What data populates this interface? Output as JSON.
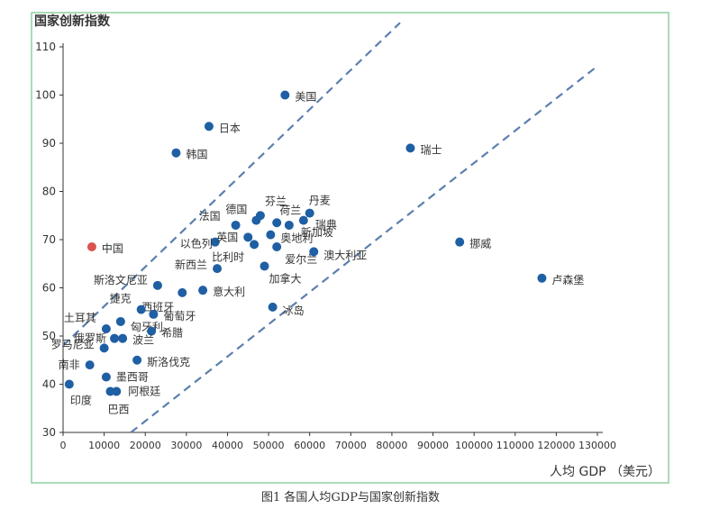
{
  "chart_data": {
    "type": "scatter",
    "title": "",
    "ylabel": "国家创新指数",
    "xlabel": "人均 GDP （美元）",
    "xlim": [
      0,
      130000
    ],
    "ylim": [
      30,
      110
    ],
    "x_ticks": [
      0,
      10000,
      20000,
      30000,
      40000,
      50000,
      60000,
      70000,
      80000,
      90000,
      100000,
      110000,
      120000,
      130000
    ],
    "y_ticks": [
      30,
      40,
      50,
      60,
      70,
      80,
      90,
      100,
      110
    ],
    "grid": false,
    "colors": {
      "default": "#1f5fa3",
      "highlight": "#d9534f",
      "reference_lines": "#5b7fae",
      "border": "#8fd19e"
    },
    "reference_lines": [
      {
        "style": "dashed",
        "points": [
          [
            0,
            48
          ],
          [
            82000,
            115
          ]
        ]
      },
      {
        "style": "dashed",
        "points": [
          [
            16500,
            30
          ],
          [
            130000,
            106
          ]
        ]
      }
    ],
    "points": [
      {
        "label": "美国",
        "x": 54000,
        "y": 100,
        "highlight": false
      },
      {
        "label": "日本",
        "x": 35500,
        "y": 93.5,
        "highlight": false
      },
      {
        "label": "韩国",
        "x": 27500,
        "y": 88,
        "highlight": false
      },
      {
        "label": "瑞士",
        "x": 84500,
        "y": 89,
        "highlight": false
      },
      {
        "label": "挪威",
        "x": 96500,
        "y": 69.5,
        "highlight": false
      },
      {
        "label": "卢森堡",
        "x": 116500,
        "y": 62,
        "highlight": false
      },
      {
        "label": "中国",
        "x": 7000,
        "y": 68.5,
        "highlight": true
      },
      {
        "label": "德国",
        "x": 47000,
        "y": 74,
        "highlight": false
      },
      {
        "label": "法国",
        "x": 42000,
        "y": 73,
        "highlight": false
      },
      {
        "label": "荷兰",
        "x": 52000,
        "y": 73.5,
        "highlight": false
      },
      {
        "label": "丹麦",
        "x": 60000,
        "y": 75.5,
        "highlight": false
      },
      {
        "label": "瑞典",
        "x": 58500,
        "y": 74,
        "highlight": false
      },
      {
        "label": "芬兰",
        "x": 48000,
        "y": 75,
        "highlight": false
      },
      {
        "label": "新加坡",
        "x": 55000,
        "y": 73,
        "highlight": false
      },
      {
        "label": "奥地利",
        "x": 50500,
        "y": 71,
        "highlight": false
      },
      {
        "label": "以色列",
        "x": 37000,
        "y": 69.5,
        "highlight": false
      },
      {
        "label": "英国",
        "x": 45000,
        "y": 70.5,
        "highlight": false
      },
      {
        "label": "爱尔兰",
        "x": 52000,
        "y": 68.5,
        "highlight": false
      },
      {
        "label": "比利时",
        "x": 46500,
        "y": 69,
        "highlight": false
      },
      {
        "label": "澳大利亚",
        "x": 61000,
        "y": 67.5,
        "highlight": false
      },
      {
        "label": "新西兰",
        "x": 37500,
        "y": 64,
        "highlight": false
      },
      {
        "label": "加拿大",
        "x": 49000,
        "y": 64.5,
        "highlight": false
      },
      {
        "label": "斯洛文尼亚",
        "x": 23000,
        "y": 60.5,
        "highlight": false
      },
      {
        "label": "意大利",
        "x": 34000,
        "y": 59.5,
        "highlight": false
      },
      {
        "label": "西班牙",
        "x": 29000,
        "y": 59,
        "highlight": false
      },
      {
        "label": "捷克",
        "x": 19000,
        "y": 55.5,
        "highlight": false
      },
      {
        "label": "葡萄牙",
        "x": 22000,
        "y": 54.5,
        "highlight": false
      },
      {
        "label": "冰岛",
        "x": 51000,
        "y": 56,
        "highlight": false
      },
      {
        "label": "土耳其",
        "x": 10500,
        "y": 51.5,
        "highlight": false
      },
      {
        "label": "匈牙利",
        "x": 14000,
        "y": 53,
        "highlight": false
      },
      {
        "label": "希腊",
        "x": 21500,
        "y": 51,
        "highlight": false
      },
      {
        "label": "俄罗斯",
        "x": 12500,
        "y": 49.5,
        "highlight": false
      },
      {
        "label": "波兰",
        "x": 14500,
        "y": 49.5,
        "highlight": false
      },
      {
        "label": "罗马尼亚",
        "x": 10000,
        "y": 47.5,
        "highlight": false
      },
      {
        "label": "南非",
        "x": 6500,
        "y": 44,
        "highlight": false
      },
      {
        "label": "斯洛伐克",
        "x": 18000,
        "y": 45,
        "highlight": false
      },
      {
        "label": "墨西哥",
        "x": 10500,
        "y": 41.5,
        "highlight": false
      },
      {
        "label": "印度",
        "x": 1500,
        "y": 40,
        "highlight": false
      },
      {
        "label": "巴西",
        "x": 11500,
        "y": 38.5,
        "highlight": false
      },
      {
        "label": "阿根廷",
        "x": 13000,
        "y": 38.5,
        "highlight": false
      }
    ]
  },
  "caption": "图1    各国人均GDP与国家创新指数"
}
